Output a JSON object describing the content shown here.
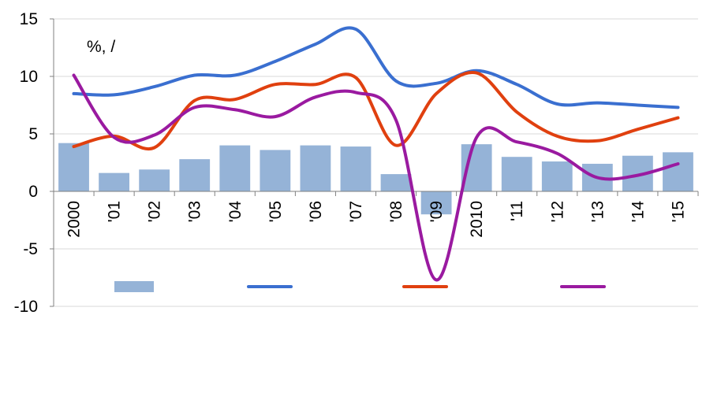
{
  "chart_data": {
    "type": "bar",
    "title": "",
    "unit_label": "%,  /",
    "xlabel": "",
    "ylabel": "",
    "ylim": [
      -10,
      15
    ],
    "yticks": [
      -10,
      -5,
      0,
      5,
      10,
      15
    ],
    "grid": true,
    "legend_position": "bottom",
    "categories": [
      "2000",
      "'01",
      "'02",
      "'03",
      "'04",
      "'05",
      "'06",
      "'07",
      "'08",
      "'09",
      "2010",
      "'11",
      "'12",
      "'13",
      "'14",
      "'15"
    ],
    "bars": {
      "color": "#95b3d7",
      "values": [
        4.2,
        1.6,
        1.9,
        2.8,
        4.0,
        3.6,
        4.0,
        3.9,
        1.5,
        -2.0,
        4.1,
        3.0,
        2.6,
        2.4,
        3.1,
        3.4
      ]
    },
    "lines": [
      {
        "color": "#3a6fd0",
        "values": [
          8.5,
          8.4,
          9.1,
          10.1,
          10.1,
          11.3,
          12.8,
          14.1,
          9.6,
          9.4,
          10.5,
          9.3,
          7.6,
          7.7,
          7.5,
          7.3
        ]
      },
      {
        "color": "#e0400f",
        "values": [
          3.9,
          4.8,
          3.8,
          7.9,
          8.0,
          9.3,
          9.3,
          9.9,
          4.0,
          8.5,
          10.3,
          6.9,
          4.8,
          4.4,
          5.4,
          6.4
        ]
      },
      {
        "color": "#9a1aa0",
        "values": [
          10.1,
          4.7,
          4.9,
          7.3,
          7.1,
          6.5,
          8.2,
          8.6,
          6.2,
          -7.7,
          4.7,
          4.3,
          3.3,
          1.2,
          1.4,
          2.4
        ]
      }
    ],
    "legend": [
      {
        "kind": "bar",
        "color": "#95b3d7"
      },
      {
        "kind": "line",
        "color": "#3a6fd0"
      },
      {
        "kind": "line",
        "color": "#e0400f"
      },
      {
        "kind": "line",
        "color": "#9a1aa0"
      }
    ]
  }
}
